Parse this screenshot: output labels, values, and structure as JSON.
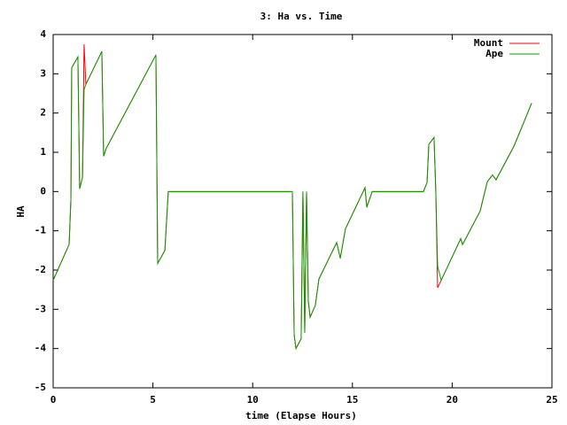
{
  "chart_data": {
    "type": "line",
    "title": "3: Ha vs. Time",
    "x_label": "time (Elapse Hours)",
    "y_label": "HA",
    "x": [
      0,
      0.36,
      0.8,
      0.89,
      0.93,
      1.24,
      1.33,
      1.47,
      1.55,
      1.64,
      2.44,
      2.53,
      2.66,
      5.15,
      5.24,
      5.6,
      5.77,
      11.99,
      12.08,
      12.17,
      12.43,
      12.52,
      12.61,
      12.7,
      12.79,
      12.88,
      13.14,
      13.32,
      14.21,
      14.39,
      14.65,
      15.54,
      15.63,
      15.72,
      15.99,
      18.56,
      18.74,
      18.83,
      19.09,
      19.18,
      19.27,
      19.45,
      20.43,
      20.52,
      21.4,
      21.76,
      22.02,
      22.2,
      23.09,
      23.62,
      23.98
    ],
    "series": [
      {
        "name": "Mount",
        "color": "#ff0000",
        "values": [
          -2.26,
          -1.85,
          -1.35,
          -0.2,
          3.15,
          3.43,
          0.07,
          0.36,
          3.75,
          2.73,
          3.57,
          0.9,
          1.1,
          3.48,
          -1.83,
          -1.5,
          0,
          0,
          -3.65,
          -4.0,
          -3.75,
          0,
          -3.6,
          0,
          -2.8,
          -3.2,
          -2.9,
          -2.23,
          -1.3,
          -1.7,
          -0.95,
          0,
          0.1,
          -0.4,
          0,
          0,
          0.23,
          1.2,
          1.38,
          0,
          -2.45,
          -2.26,
          -1.2,
          -1.35,
          -0.5,
          0.25,
          0.42,
          0.3,
          1.15,
          1.8,
          2.25
        ]
      },
      {
        "name": "Ape",
        "color": "#00a000",
        "values": [
          -2.26,
          -1.85,
          -1.35,
          -0.2,
          3.15,
          3.43,
          0.07,
          0.36,
          2.6,
          2.73,
          3.57,
          0.9,
          1.1,
          3.48,
          -1.83,
          -1.5,
          0,
          0,
          -3.65,
          -4.0,
          -3.75,
          0,
          -3.6,
          0,
          -2.8,
          -3.2,
          -2.9,
          -2.23,
          -1.3,
          -1.7,
          -0.95,
          0,
          0.1,
          -0.4,
          0,
          0,
          0.23,
          1.2,
          1.38,
          0,
          -1.9,
          -2.26,
          -1.2,
          -1.35,
          -0.5,
          0.25,
          0.42,
          0.3,
          1.15,
          1.8,
          2.25
        ]
      }
    ],
    "xlim": [
      0,
      25
    ],
    "xticks": [
      0,
      5,
      10,
      15,
      20,
      25
    ],
    "ylim": [
      -5,
      4
    ],
    "yticks": [
      -5,
      -4,
      -3,
      -2,
      -1,
      0,
      1,
      2,
      3,
      4
    ],
    "grid": false,
    "legend": "top-right"
  }
}
